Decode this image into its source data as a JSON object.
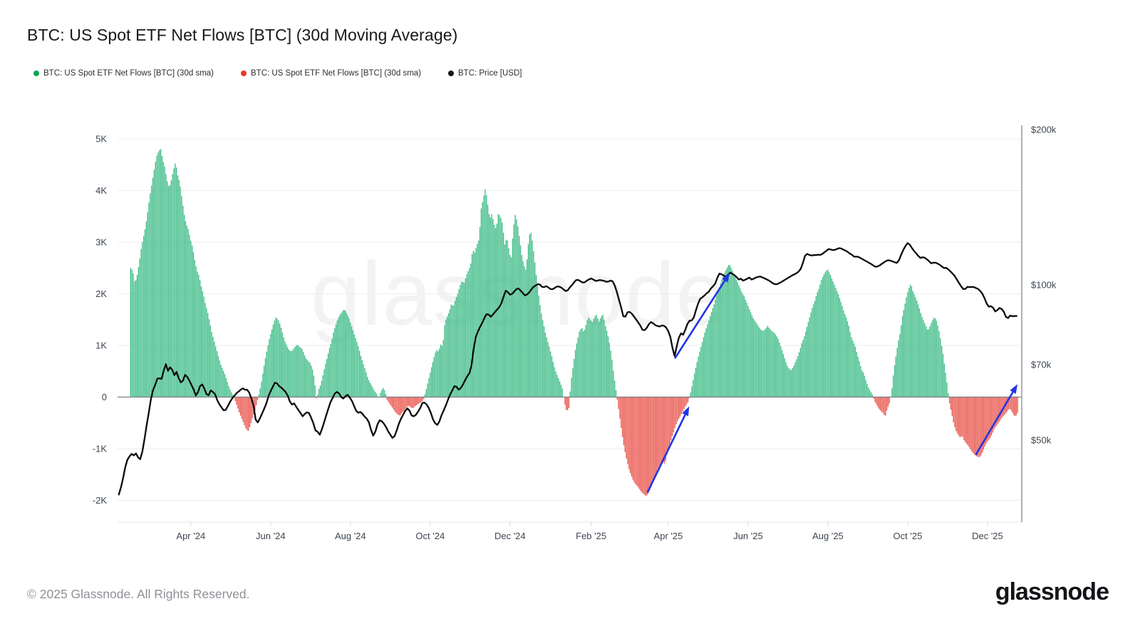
{
  "title": "BTC: US Spot ETF Net Flows [BTC] (30d Moving Average)",
  "legend": {
    "items": [
      {
        "label": "BTC: US Spot ETF Net Flows [BTC] (30d sma)",
        "color": "#0ca750"
      },
      {
        "label": "BTC: US Spot ETF Net Flows [BTC] (30d sma)",
        "color": "#e8352b"
      },
      {
        "label": "BTC: Price [USD]",
        "color": "#16161a"
      }
    ]
  },
  "watermark": "glassnode",
  "footer": {
    "copyright": "© 2025 Glassnode. All Rights Reserved.",
    "logo": "glassnode"
  },
  "chart_data": {
    "type": "combo",
    "title": "BTC: US Spot ETF Net Flows [BTC] (30d Moving Average)",
    "x_axis": {
      "unit": "days since 2024-02-05",
      "tick_labels": [
        "Apr '24",
        "Jun '24",
        "Aug '24",
        "Oct '24",
        "Dec '24",
        "Feb '25",
        "Apr '25",
        "Jun '25",
        "Aug '25",
        "Oct '25",
        "Dec '25"
      ],
      "tick_days": [
        56,
        117,
        178,
        239,
        300,
        362,
        421,
        482,
        543,
        604,
        665
      ]
    },
    "left_axis": {
      "title": "Net Flows (BTC, 30d sma)",
      "ticks": [
        {
          "label": "5K",
          "value": 5000
        },
        {
          "label": "4K",
          "value": 4000
        },
        {
          "label": "3K",
          "value": 3000
        },
        {
          "label": "2K",
          "value": 2000
        },
        {
          "label": "1K",
          "value": 1000
        },
        {
          "label": "0",
          "value": 0
        },
        {
          "label": "-1K",
          "value": -1000
        },
        {
          "label": "-2K",
          "value": -2000
        }
      ]
    },
    "right_axis": {
      "title": "BTC Price (USD)",
      "scale": "log",
      "ticks": [
        {
          "label": "$200k",
          "value": 200000
        },
        {
          "label": "$100k",
          "value": 100000
        },
        {
          "label": "$70k",
          "value": 70000
        },
        {
          "label": "$50k",
          "value": 50000
        }
      ]
    },
    "series": [
      {
        "name": "BTC: US Spot ETF Net Flows [BTC] (30d sma)",
        "type": "bar",
        "unit": "thousand BTC",
        "positive_color": "#36b981",
        "negative_color": "#e84b42",
        "start_day": 10,
        "step_days": 1.634,
        "values": [
          2.5,
          2.45,
          2.2,
          2.35,
          2.6,
          2.9,
          3.1,
          3.3,
          3.6,
          3.9,
          4.15,
          4.4,
          4.65,
          4.75,
          4.82,
          4.6,
          4.45,
          4.2,
          4.05,
          4.2,
          4.4,
          4.55,
          4.3,
          4.15,
          3.85,
          3.55,
          3.35,
          3.25,
          3.05,
          2.9,
          2.65,
          2.45,
          2.35,
          2.15,
          2.0,
          1.8,
          1.65,
          1.45,
          1.25,
          1.1,
          0.95,
          0.8,
          0.65,
          0.55,
          0.45,
          0.33,
          0.2,
          0.1,
          0.03,
          -0.08,
          -0.2,
          -0.32,
          -0.42,
          -0.52,
          -0.62,
          -0.66,
          -0.55,
          -0.4,
          -0.28,
          -0.12,
          0.05,
          0.25,
          0.5,
          0.75,
          0.95,
          1.15,
          1.3,
          1.45,
          1.55,
          1.5,
          1.4,
          1.25,
          1.1,
          1.0,
          0.92,
          0.88,
          0.92,
          0.98,
          1.02,
          0.97,
          0.95,
          0.85,
          0.75,
          0.7,
          0.66,
          0.55,
          0.35,
          -0.06,
          0.15,
          0.25,
          0.43,
          0.62,
          0.77,
          0.95,
          1.08,
          1.28,
          1.4,
          1.52,
          1.6,
          1.66,
          1.7,
          1.63,
          1.55,
          1.42,
          1.3,
          1.17,
          1.05,
          0.91,
          0.75,
          0.63,
          0.5,
          0.36,
          0.28,
          0.21,
          0.12,
          0.07,
          -0.05,
          0.1,
          0.18,
          0.12,
          -0.06,
          -0.12,
          -0.18,
          -0.24,
          -0.3,
          -0.34,
          -0.36,
          -0.3,
          -0.26,
          -0.2,
          -0.16,
          -0.2,
          -0.22,
          -0.18,
          -0.15,
          -0.12,
          -0.1,
          -0.05,
          0.1,
          0.28,
          0.45,
          0.62,
          0.78,
          0.92,
          0.88,
          1.02,
          0.98,
          1.45,
          1.55,
          1.65,
          1.8,
          1.75,
          1.9,
          2.0,
          2.15,
          2.25,
          2.2,
          2.35,
          2.45,
          2.55,
          2.85,
          2.8,
          2.95,
          3.05,
          3.65,
          3.85,
          4.05,
          3.75,
          3.45,
          3.55,
          3.35,
          3.25,
          3.55,
          3.5,
          3.35,
          2.95,
          3.1,
          2.85,
          2.65,
          3.25,
          3.55,
          3.35,
          3.05,
          2.75,
          2.55,
          2.45,
          2.95,
          3.25,
          3.0,
          2.65,
          2.25,
          1.95,
          1.65,
          1.45,
          1.25,
          1.1,
          0.95,
          0.8,
          0.62,
          0.48,
          0.38,
          0.28,
          0.16,
          -0.12,
          -0.28,
          -0.22,
          0.3,
          0.6,
          0.9,
          1.1,
          1.28,
          1.35,
          1.25,
          1.4,
          1.55,
          1.5,
          1.45,
          1.55,
          1.6,
          1.45,
          1.55,
          1.6,
          1.4,
          1.25,
          1.05,
          0.8,
          0.45,
          0.15,
          -0.15,
          -0.45,
          -0.75,
          -1.0,
          -1.2,
          -1.38,
          -1.5,
          -1.6,
          -1.68,
          -1.72,
          -1.78,
          -1.84,
          -1.88,
          -1.92,
          -1.88,
          -1.8,
          -1.7,
          -1.55,
          -1.45,
          -1.35,
          -1.3,
          -1.25,
          -1.3,
          -1.1,
          -0.95,
          -0.8,
          -0.68,
          -0.55,
          -0.45,
          -0.38,
          -0.3,
          -0.22,
          -0.15,
          -0.08,
          0.1,
          0.3,
          0.5,
          0.68,
          0.85,
          1.0,
          1.15,
          1.3,
          1.42,
          1.55,
          1.68,
          1.8,
          1.95,
          2.08,
          2.2,
          2.32,
          2.42,
          2.5,
          2.58,
          2.5,
          2.4,
          2.3,
          2.22,
          2.12,
          2.02,
          1.95,
          1.85,
          1.75,
          1.65,
          1.55,
          1.48,
          1.42,
          1.35,
          1.3,
          1.28,
          1.32,
          1.38,
          1.32,
          1.28,
          1.25,
          1.2,
          1.12,
          1.0,
          0.88,
          0.75,
          0.62,
          0.55,
          0.52,
          0.58,
          0.68,
          0.78,
          0.9,
          1.05,
          1.15,
          1.3,
          1.45,
          1.6,
          1.75,
          1.85,
          2.0,
          2.1,
          2.25,
          2.35,
          2.42,
          2.48,
          2.4,
          2.3,
          2.2,
          2.1,
          2.0,
          1.88,
          1.75,
          1.62,
          1.52,
          1.38,
          1.18,
          1.08,
          0.98,
          0.82,
          0.68,
          0.52,
          0.46,
          0.32,
          0.2,
          0.12,
          0.05,
          -0.08,
          -0.15,
          -0.22,
          -0.27,
          -0.31,
          -0.38,
          -0.22,
          -0.12,
          0.1,
          0.5,
          0.78,
          1.05,
          1.25,
          1.55,
          1.75,
          1.95,
          2.1,
          2.2,
          2.05,
          1.95,
          1.85,
          1.72,
          1.58,
          1.48,
          1.38,
          1.28,
          1.38,
          1.48,
          1.55,
          1.48,
          1.32,
          1.1,
          0.85,
          0.55,
          0.25,
          -0.1,
          -0.3,
          -0.5,
          -0.65,
          -0.72,
          -0.78,
          -0.75,
          -0.85,
          -0.9,
          -0.95,
          -1.02,
          -1.08,
          -1.12,
          -1.15,
          -1.17,
          -1.12,
          -1.02,
          -0.92,
          -0.85,
          -0.8,
          -0.72,
          -0.62,
          -0.56,
          -0.5,
          -0.44,
          -0.38,
          -0.34,
          -0.28,
          -0.22,
          -0.26,
          -0.34,
          -0.38,
          -0.3
        ]
      },
      {
        "name": "BTC: Price [USD]",
        "type": "line",
        "unit": "thousand USD",
        "color": "#0b0b0e",
        "start_day": 1,
        "step_days": 1.634,
        "values": [
          39.2,
          40.5,
          42.2,
          44.3,
          45.8,
          46.5,
          47.0,
          46.7,
          47.1,
          46.3,
          45.9,
          47.5,
          50.2,
          53.4,
          56.5,
          60.0,
          62.5,
          64.0,
          65.8,
          65.9,
          65.7,
          68.2,
          70.2,
          68.1,
          69.2,
          68.4,
          66.8,
          67.8,
          65.9,
          64.7,
          65.2,
          66.9,
          66.3,
          65.2,
          63.9,
          62.7,
          61.0,
          61.9,
          63.6,
          64.1,
          62.9,
          61.4,
          61.1,
          62.4,
          62.0,
          61.4,
          59.8,
          58.7,
          57.9,
          57.1,
          57.2,
          58.2,
          59.3,
          60.2,
          60.9,
          61.6,
          62.1,
          62.6,
          63.0,
          62.6,
          62.6,
          61.8,
          60.2,
          58.4,
          54.8,
          54.1,
          55.1,
          56.3,
          57.5,
          58.9,
          60.8,
          62.2,
          63.4,
          64.6,
          64.4,
          63.6,
          63.2,
          62.6,
          62.0,
          61.0,
          59.4,
          58.6,
          58.9,
          58.0,
          57.2,
          56.4,
          55.6,
          56.2,
          56.6,
          56.4,
          55.2,
          53.9,
          52.2,
          51.9,
          51.2,
          52.5,
          54.1,
          55.8,
          57.5,
          59.2,
          60.3,
          61.5,
          62.0,
          61.6,
          60.6,
          60.2,
          60.8,
          61.2,
          60.5,
          59.6,
          58.3,
          57.0,
          56.5,
          56.7,
          56.2,
          55.5,
          55.0,
          54.1,
          52.3,
          51.0,
          51.9,
          53.6,
          54.6,
          54.4,
          53.8,
          53.0,
          52.0,
          51.2,
          50.5,
          50.9,
          52.2,
          53.8,
          55.0,
          56.0,
          57.0,
          57.6,
          57.0,
          55.8,
          55.6,
          56.0,
          56.8,
          57.7,
          59.0,
          59.1,
          58.6,
          57.7,
          56.4,
          54.8,
          53.9,
          53.5,
          54.4,
          55.9,
          57.1,
          58.4,
          59.9,
          61.3,
          62.4,
          63.6,
          63.4,
          62.6,
          63.1,
          64.1,
          65.3,
          66.5,
          67.4,
          69.8,
          75.2,
          79.3,
          81.2,
          82.9,
          84.4,
          86.2,
          87.7,
          87.6,
          86.7,
          87.6,
          88.6,
          89.6,
          90.6,
          92.2,
          94.9,
          97.4,
          96.8,
          95.7,
          96.1,
          97.1,
          98.1,
          98.4,
          97.4,
          96.4,
          95.4,
          95.8,
          96.7,
          98.0,
          99.1,
          99.7,
          100.3,
          100.1,
          99.1,
          99.0,
          99.4,
          98.8,
          98.1,
          98.1,
          98.7,
          99.3,
          99.2,
          98.8,
          98.0,
          97.3,
          97.6,
          98.9,
          99.9,
          101.2,
          102.2,
          102.2,
          101.6,
          101.0,
          101.2,
          101.9,
          102.5,
          102.9,
          102.4,
          101.8,
          101.9,
          102.2,
          102.0,
          101.8,
          101.4,
          101.5,
          101.9,
          101.6,
          99.7,
          96.8,
          93.5,
          90.4,
          86.9,
          86.8,
          88.5,
          88.6,
          87.9,
          86.8,
          85.7,
          84.5,
          83.3,
          81.8,
          81.7,
          82.6,
          83.9,
          84.7,
          84.2,
          83.5,
          83.2,
          83.0,
          83.4,
          83.3,
          82.7,
          81.4,
          79.3,
          75.5,
          72.8,
          76.0,
          79.0,
          80.5,
          80.0,
          81.8,
          84.0,
          85.2,
          85.3,
          86.5,
          89.3,
          92.0,
          94.0,
          94.6,
          95.4,
          96.3,
          97.0,
          98.4,
          99.4,
          100.6,
          103.2,
          105.2,
          104.8,
          104.2,
          103.7,
          104.6,
          105.6,
          105.1,
          104.4,
          103.5,
          102.4,
          102.8,
          101.9,
          102.3,
          102.8,
          103.3,
          102.4,
          102.8,
          103.3,
          103.6,
          103.8,
          103.4,
          103.0,
          102.5,
          102.0,
          101.4,
          100.7,
          100.3,
          100.3,
          100.8,
          101.3,
          101.9,
          102.5,
          103.1,
          103.7,
          104.3,
          104.8,
          105.3,
          106.1,
          107.4,
          110.2,
          113.8,
          114.8,
          114.3,
          114.0,
          114.2,
          114.2,
          114.4,
          114.3,
          114.7,
          115.6,
          116.4,
          117.3,
          117.1,
          116.8,
          116.9,
          117.4,
          117.8,
          117.6,
          117.0,
          116.5,
          115.8,
          115.0,
          114.3,
          113.4,
          113.4,
          113.3,
          112.7,
          112.1,
          111.5,
          110.9,
          110.3,
          109.7,
          109.0,
          108.4,
          108.6,
          109.1,
          109.9,
          110.6,
          111.3,
          111.6,
          111.4,
          111.0,
          110.6,
          110.3,
          111.7,
          114.4,
          116.9,
          118.9,
          120.5,
          119.7,
          117.9,
          116.4,
          115.1,
          113.8,
          112.8,
          113.1,
          112.9,
          112.1,
          111.2,
          110.1,
          110.4,
          110.4,
          110.0,
          109.4,
          108.6,
          107.8,
          107.9,
          107.2,
          106.2,
          105.2,
          104.1,
          102.5,
          100.9,
          99.4,
          98.2,
          98.2,
          99.1,
          99.0,
          99.1,
          99.0,
          98.6,
          98.2,
          97.3,
          96.1,
          94.2,
          92.0,
          90.7,
          90.9,
          90.3,
          88.8,
          89.3,
          90.2,
          89.8,
          88.7,
          86.7,
          86.2,
          87.2,
          86.9,
          87.0,
          87.0
        ]
      }
    ],
    "annotations": [
      {
        "type": "arrow",
        "axis": "flow",
        "from_day": 405,
        "from_value": -1.85,
        "to_day": 437,
        "to_value": -0.18,
        "color": "#2435e4"
      },
      {
        "type": "arrow",
        "axis": "price",
        "from_day": 426,
        "from_value": 72.0,
        "to_day": 468,
        "to_value": 105.5,
        "color": "#2435e4"
      },
      {
        "type": "arrow",
        "axis": "flow",
        "from_day": 656,
        "from_value": -1.12,
        "to_day": 688,
        "to_value": 0.25,
        "color": "#2435e4"
      }
    ]
  }
}
